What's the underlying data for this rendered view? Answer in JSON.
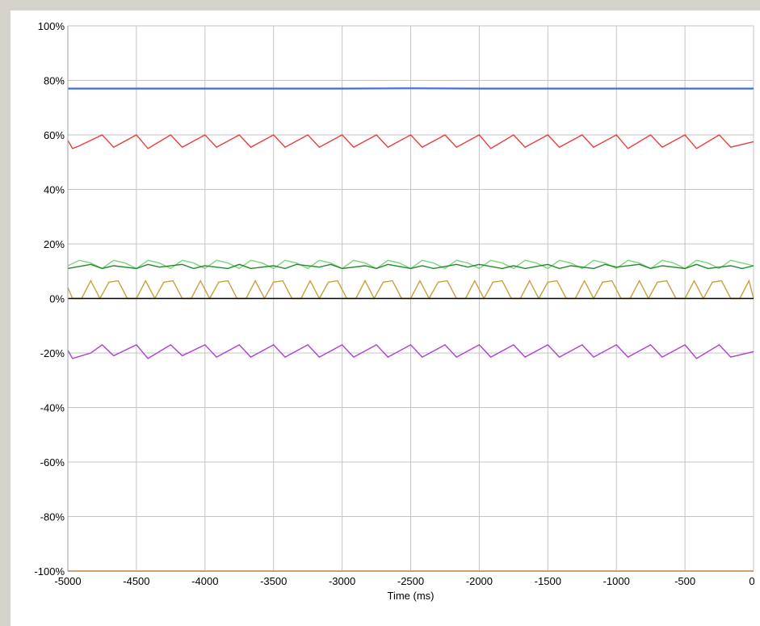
{
  "chart_data": {
    "type": "line",
    "xlabel": "Time (ms)",
    "ylabel": "",
    "xlim": [
      -5000,
      0
    ],
    "ylim": [
      -100,
      100
    ],
    "x_ticks": [
      -5000,
      -4500,
      -4000,
      -3500,
      -3000,
      -2500,
      -2000,
      -1500,
      -1000,
      -500,
      0
    ],
    "y_ticks": [
      100,
      80,
      60,
      40,
      20,
      0,
      -20,
      -40,
      -60,
      -80,
      -100
    ],
    "x_tick_labels": [
      "-5000",
      "-4500",
      "-4000",
      "-3500",
      "-3000",
      "-2500",
      "-2000",
      "-1500",
      "-1000",
      "-500",
      "0"
    ],
    "y_tick_labels": [
      "100%",
      "80%",
      "60%",
      "40%",
      "20%",
      "0%",
      "-20%",
      "-40%",
      "-60%",
      "-80%",
      "-100%"
    ],
    "grid": true,
    "legend": "none",
    "series": [
      {
        "color": "#3b6fe8",
        "x": [
          -5000,
          -4000,
          -3000,
          -2500,
          -2000,
          -1000,
          0
        ],
        "y": [
          77,
          77,
          77,
          77.1,
          77,
          77,
          77
        ]
      },
      {
        "color": "#ee3b3b",
        "x": [
          -5000,
          -4966,
          -4916,
          -4750,
          -4666,
          -4500,
          -4416,
          -4250,
          -4166,
          -4000,
          -3916,
          -3750,
          -3666,
          -3500,
          -3416,
          -3250,
          -3166,
          -3000,
          -2916,
          -2750,
          -2666,
          -2500,
          -2416,
          -2250,
          -2166,
          -2000,
          -1916,
          -1750,
          -1666,
          -1500,
          -1416,
          -1250,
          -1166,
          -1000,
          -916,
          -750,
          -666,
          -500,
          -416,
          -250,
          -166,
          0
        ],
        "y": [
          58,
          55,
          56,
          60,
          55.5,
          60,
          55,
          60,
          55.5,
          60,
          55.5,
          60,
          55.5,
          60,
          55.5,
          60,
          55.5,
          60,
          55.5,
          60,
          55.5,
          60,
          55.5,
          60,
          55.5,
          60,
          55,
          60,
          55.5,
          60,
          55.5,
          60,
          55.5,
          60,
          55,
          60,
          55.5,
          60,
          55,
          60,
          55.5,
          57.5
        ]
      },
      {
        "color": "#7cd67c",
        "x": [
          -5000,
          -4916,
          -4833,
          -4750,
          -4666,
          -4583,
          -4500,
          -4416,
          -4333,
          -4250,
          -4166,
          -4083,
          -4000,
          -3916,
          -3833,
          -3750,
          -3666,
          -3583,
          -3500,
          -3416,
          -3333,
          -3250,
          -3166,
          -3083,
          -3000,
          -2916,
          -2833,
          -2750,
          -2666,
          -2583,
          -2500,
          -2416,
          -2333,
          -2250,
          -2166,
          -2083,
          -2000,
          -1916,
          -1833,
          -1750,
          -1666,
          -1583,
          -1500,
          -1416,
          -1333,
          -1250,
          -1166,
          -1083,
          -1000,
          -916,
          -833,
          -750,
          -666,
          -583,
          -500,
          -416,
          -333,
          -250,
          -166,
          -83,
          0
        ],
        "y": [
          12,
          14,
          13,
          11,
          14,
          13,
          11,
          14,
          13,
          11,
          14,
          13,
          11,
          14,
          13,
          11,
          14,
          13,
          11,
          14,
          13,
          11,
          14,
          13,
          11,
          14,
          13,
          11,
          14,
          13,
          11,
          14,
          13,
          11,
          14,
          13,
          11,
          14,
          13,
          11,
          14,
          13,
          11,
          14,
          13,
          11,
          14,
          13,
          11,
          14,
          13,
          11,
          14,
          13,
          11,
          14,
          13,
          11,
          14,
          13,
          12
        ]
      },
      {
        "color": "#1f8a2a",
        "x": [
          -5000,
          -4833,
          -4750,
          -4666,
          -4500,
          -4416,
          -4333,
          -4166,
          -4083,
          -4000,
          -3833,
          -3750,
          -3666,
          -3500,
          -3416,
          -3333,
          -3166,
          -3083,
          -3000,
          -2833,
          -2750,
          -2666,
          -2500,
          -2416,
          -2333,
          -2166,
          -2083,
          -2000,
          -1833,
          -1750,
          -1666,
          -1500,
          -1416,
          -1333,
          -1166,
          -1083,
          -1000,
          -833,
          -750,
          -666,
          -500,
          -416,
          -333,
          -166,
          -83,
          0
        ],
        "y": [
          11,
          12.5,
          11,
          12,
          11,
          12.5,
          11.5,
          12.5,
          11,
          12,
          11,
          12.5,
          11,
          12,
          11,
          12.5,
          11.5,
          12.5,
          11,
          12,
          11,
          12.5,
          11,
          12,
          11,
          12.5,
          11.5,
          12.5,
          11,
          12,
          11,
          12.5,
          11,
          12,
          11,
          12.5,
          11.5,
          12.5,
          11,
          12,
          11,
          12.5,
          11,
          12,
          11,
          12
        ]
      },
      {
        "color": "#c9a03c",
        "x": [
          -5000,
          -4966,
          -4900,
          -4833,
          -4766,
          -4700,
          -4633,
          -4566,
          -4500,
          -4433,
          -4366,
          -4300,
          -4233,
          -4166,
          -4100,
          -4033,
          -3966,
          -3900,
          -3833,
          -3766,
          -3700,
          -3633,
          -3566,
          -3500,
          -3433,
          -3366,
          -3300,
          -3233,
          -3166,
          -3100,
          -3033,
          -2966,
          -2900,
          -2833,
          -2766,
          -2700,
          -2633,
          -2566,
          -2500,
          -2433,
          -2366,
          -2300,
          -2233,
          -2166,
          -2100,
          -2033,
          -1966,
          -1900,
          -1833,
          -1766,
          -1700,
          -1633,
          -1566,
          -1500,
          -1433,
          -1366,
          -1300,
          -1233,
          -1166,
          -1100,
          -1033,
          -966,
          -900,
          -833,
          -766,
          -700,
          -633,
          -566,
          -500,
          -433,
          -366,
          -300,
          -233,
          -166,
          -100,
          -33,
          0
        ],
        "y": [
          4,
          0,
          0,
          6.5,
          0,
          6,
          6.5,
          0,
          0,
          6.5,
          0,
          6,
          6.5,
          0,
          0,
          6.5,
          0,
          6,
          6.5,
          0,
          0,
          6.5,
          0,
          6,
          6.5,
          0,
          0,
          6.5,
          0,
          6,
          6.5,
          0,
          0,
          6.5,
          0,
          6,
          6.5,
          0,
          0,
          6.5,
          0,
          6,
          6.5,
          0,
          0,
          6.5,
          0,
          6,
          6.5,
          0,
          0,
          6.5,
          0,
          6,
          6.5,
          0,
          0,
          6.5,
          0,
          6,
          6.5,
          0,
          0,
          6.5,
          0,
          6,
          6.5,
          0,
          0,
          6.5,
          0,
          6,
          6.5,
          0,
          0,
          6.5,
          0
        ]
      },
      {
        "color": "#000000",
        "x": [
          -5000,
          0
        ],
        "y": [
          0,
          0
        ]
      },
      {
        "color": "#b13fd6",
        "x": [
          -5000,
          -4966,
          -4833,
          -4750,
          -4666,
          -4500,
          -4416,
          -4250,
          -4166,
          -4000,
          -3916,
          -3750,
          -3666,
          -3500,
          -3416,
          -3250,
          -3166,
          -3000,
          -2916,
          -2750,
          -2666,
          -2500,
          -2416,
          -2250,
          -2166,
          -2000,
          -1916,
          -1750,
          -1666,
          -1500,
          -1416,
          -1250,
          -1166,
          -1000,
          -916,
          -750,
          -666,
          -500,
          -416,
          -250,
          -166,
          0
        ],
        "y": [
          -19,
          -22,
          -20,
          -17,
          -21,
          -17,
          -22,
          -17,
          -21,
          -17,
          -21.5,
          -17,
          -21.5,
          -17,
          -21.5,
          -17,
          -21.5,
          -17,
          -21.5,
          -17,
          -21.5,
          -17,
          -21.5,
          -17,
          -21.5,
          -17,
          -21.5,
          -17,
          -21.5,
          -17,
          -21.5,
          -17,
          -21.5,
          -17,
          -21.5,
          -17,
          -21.5,
          -17,
          -22,
          -17,
          -21.5,
          -19.5
        ]
      },
      {
        "color": "#f5a04a",
        "x": [
          -5000,
          0
        ],
        "y": [
          -100,
          -100
        ]
      }
    ]
  }
}
